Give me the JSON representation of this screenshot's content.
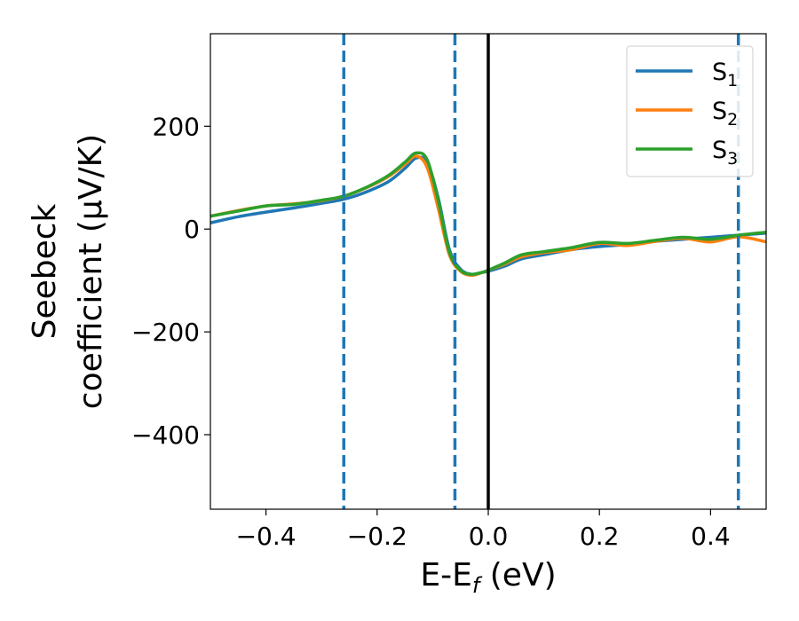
{
  "chart_data": {
    "type": "line",
    "xlabel": "E-E",
    "xlabel_sub": "f",
    "xlabel_unit": " (eV)",
    "ylabel_line1": "Seebeck",
    "ylabel_line2": "coefficient  (μV/K)",
    "xlim": [
      -0.5,
      0.5
    ],
    "ylim": [
      -545,
      380
    ],
    "xticks": [
      -0.4,
      -0.2,
      0.0,
      0.2,
      0.4
    ],
    "xtick_labels": [
      "−0.4",
      "−0.2",
      "0.0",
      "0.2",
      "0.4"
    ],
    "yticks": [
      200,
      0,
      -200,
      -400
    ],
    "ytick_labels": [
      "200",
      "0",
      "−200",
      "−400"
    ],
    "grid": false,
    "legend_position": "top-right",
    "vlines": [
      {
        "x": -0.26,
        "style": "dashed",
        "color": "#1f77b4"
      },
      {
        "x": -0.06,
        "style": "dashed",
        "color": "#1f77b4"
      },
      {
        "x": 0.0,
        "style": "solid",
        "color": "#000000"
      },
      {
        "x": 0.45,
        "style": "dashed",
        "color": "#1f77b4"
      }
    ],
    "series": [
      {
        "name": "S",
        "sub": "1",
        "color": "#1f77b4",
        "x": [
          -0.5,
          -0.45,
          -0.4,
          -0.35,
          -0.3,
          -0.26,
          -0.22,
          -0.18,
          -0.15,
          -0.13,
          -0.11,
          -0.09,
          -0.07,
          -0.05,
          -0.03,
          -0.01,
          0.0,
          0.03,
          0.06,
          0.1,
          0.15,
          0.2,
          0.25,
          0.3,
          0.35,
          0.4,
          0.45,
          0.5
        ],
        "y": [
          12,
          24,
          33,
          41,
          50,
          58,
          72,
          92,
          118,
          138,
          130,
          60,
          -40,
          -78,
          -88,
          -84,
          -82,
          -72,
          -58,
          -50,
          -40,
          -34,
          -30,
          -24,
          -20,
          -16,
          -12,
          -8
        ]
      },
      {
        "name": "S",
        "sub": "2",
        "color": "#ff7f0e",
        "x": [
          -0.5,
          -0.45,
          -0.4,
          -0.35,
          -0.3,
          -0.26,
          -0.22,
          -0.18,
          -0.15,
          -0.13,
          -0.11,
          -0.09,
          -0.07,
          -0.05,
          -0.03,
          -0.01,
          0.0,
          0.03,
          0.06,
          0.1,
          0.15,
          0.2,
          0.25,
          0.3,
          0.35,
          0.4,
          0.45,
          0.5
        ],
        "y": [
          25,
          36,
          45,
          49,
          55,
          64,
          80,
          102,
          126,
          142,
          120,
          40,
          -50,
          -82,
          -90,
          -84,
          -80,
          -68,
          -54,
          -46,
          -40,
          -28,
          -32,
          -24,
          -18,
          -25,
          -15,
          -25
        ]
      },
      {
        "name": "S",
        "sub": "3",
        "color": "#2ca02c",
        "x": [
          -0.5,
          -0.45,
          -0.4,
          -0.35,
          -0.3,
          -0.26,
          -0.22,
          -0.18,
          -0.15,
          -0.13,
          -0.11,
          -0.09,
          -0.07,
          -0.05,
          -0.03,
          -0.01,
          0.0,
          0.03,
          0.06,
          0.1,
          0.15,
          0.2,
          0.25,
          0.3,
          0.35,
          0.4,
          0.45,
          0.5
        ],
        "y": [
          25,
          35,
          45,
          48,
          56,
          64,
          81,
          104,
          130,
          148,
          135,
          55,
          -45,
          -80,
          -88,
          -84,
          -80,
          -66,
          -50,
          -44,
          -36,
          -26,
          -28,
          -22,
          -16,
          -20,
          -12,
          -6
        ]
      }
    ]
  }
}
